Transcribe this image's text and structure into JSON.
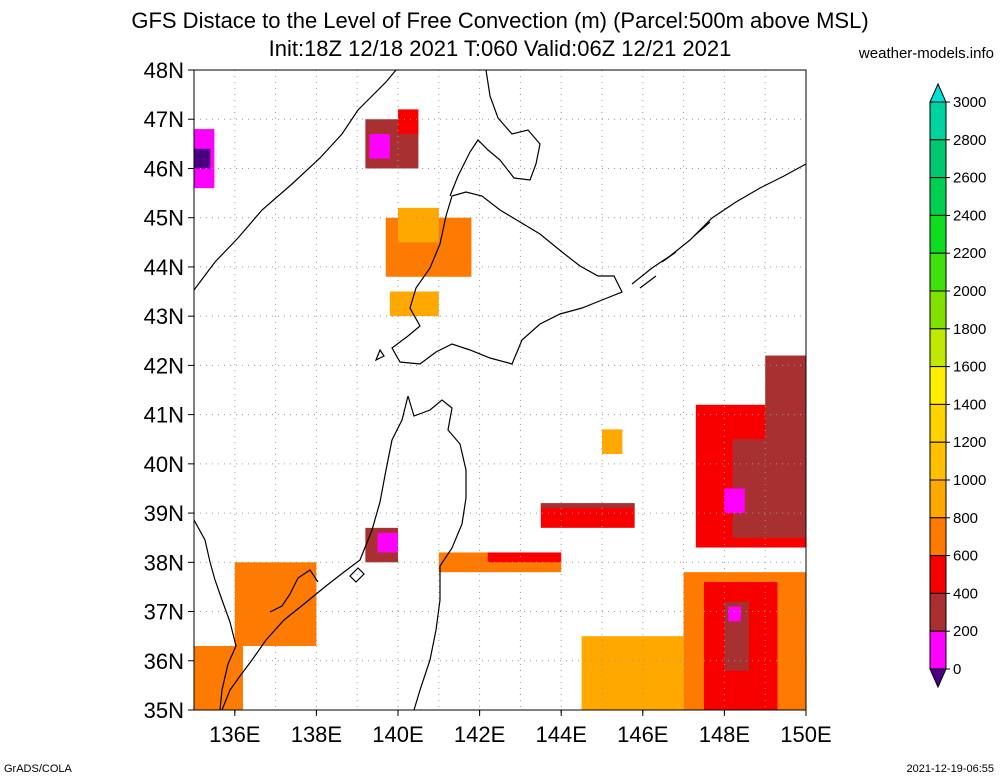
{
  "title": "GFS Distace to the Level of Free Convection (m) (Parcel:500m above MSL)",
  "subtitle": "Init:18Z 12/18 2021 T:060 Valid:06Z 12/21 2021",
  "credit": "weather-models.info",
  "footer_left": "GrADS/COLA",
  "footer_right": "2021-12-19-06:55",
  "lat_labels": [
    "48N",
    "47N",
    "46N",
    "45N",
    "44N",
    "43N",
    "42N",
    "41N",
    "40N",
    "39N",
    "38N",
    "37N",
    "36N",
    "35N"
  ],
  "lon_labels": [
    "136E",
    "138E",
    "140E",
    "142E",
    "144E",
    "146E",
    "148E",
    "150E"
  ],
  "colorbar": {
    "labels": [
      "3000",
      "2800",
      "2600",
      "2400",
      "2200",
      "2000",
      "1800",
      "1600",
      "1400",
      "1200",
      "1000",
      "800",
      "600",
      "400",
      "200",
      "0"
    ],
    "colors": [
      "#00e0d8",
      "#00d2a0",
      "#00c870",
      "#00d050",
      "#10dc20",
      "#40e010",
      "#80e000",
      "#c0e800",
      "#ffee00",
      "#ffd200",
      "#ffc000",
      "#ffa800",
      "#ff7a00",
      "#f80000",
      "#a83030",
      "#ff00ff",
      "#4b0082"
    ]
  },
  "chart_data": {
    "type": "heatmap",
    "lon_range": [
      135,
      150
    ],
    "lat_range": [
      35,
      48
    ],
    "value_range": [
      0,
      3000
    ],
    "regions": [
      {
        "lon": [
          147.0,
          150.0
        ],
        "lat": [
          35.0,
          37.8
        ],
        "level": 800
      },
      {
        "lon": [
          147.5,
          149.3
        ],
        "lat": [
          35.0,
          37.6
        ],
        "level": 600
      },
      {
        "lon": [
          148.0,
          148.6
        ],
        "lat": [
          35.8,
          37.2
        ],
        "level": 400
      },
      {
        "lon": [
          148.1,
          148.4
        ],
        "lat": [
          36.8,
          37.1
        ],
        "level": 200
      },
      {
        "lon": [
          144.5,
          147.0
        ],
        "lat": [
          35.0,
          36.5
        ],
        "level": 1000
      },
      {
        "lon": [
          147.3,
          150.0
        ],
        "lat": [
          38.3,
          41.2
        ],
        "level": 600
      },
      {
        "lon": [
          148.2,
          150.0
        ],
        "lat": [
          38.5,
          40.5
        ],
        "level": 400
      },
      {
        "lon": [
          149.0,
          150.0
        ],
        "lat": [
          40.5,
          42.2
        ],
        "level": 400
      },
      {
        "lon": [
          148.0,
          148.5
        ],
        "lat": [
          39.0,
          39.5
        ],
        "level": 200
      },
      {
        "lon": [
          143.5,
          145.8
        ],
        "lat": [
          38.7,
          39.2
        ],
        "level": 600
      },
      {
        "lon": [
          143.5,
          145.8
        ],
        "lat": [
          39.1,
          39.2
        ],
        "level": 400
      },
      {
        "lon": [
          141.0,
          144.0
        ],
        "lat": [
          37.8,
          38.2
        ],
        "level": 800
      },
      {
        "lon": [
          142.2,
          144.0
        ],
        "lat": [
          38.0,
          38.2
        ],
        "level": 600
      },
      {
        "lon": [
          135.0,
          136.2
        ],
        "lat": [
          35.0,
          36.3
        ],
        "level": 800
      },
      {
        "lon": [
          136.0,
          138.0
        ],
        "lat": [
          36.3,
          38.0
        ],
        "level": 800
      },
      {
        "lon": [
          139.2,
          140.0
        ],
        "lat": [
          38.0,
          38.7
        ],
        "level": 400
      },
      {
        "lon": [
          139.5,
          140.0
        ],
        "lat": [
          38.2,
          38.6
        ],
        "level": 200
      },
      {
        "lon": [
          139.7,
          141.8
        ],
        "lat": [
          43.8,
          45.0
        ],
        "level": 800
      },
      {
        "lon": [
          140.0,
          141.0
        ],
        "lat": [
          44.5,
          45.2
        ],
        "level": 1000
      },
      {
        "lon": [
          139.2,
          140.5
        ],
        "lat": [
          46.0,
          47.0
        ],
        "level": 400
      },
      {
        "lon": [
          139.3,
          139.8
        ],
        "lat": [
          46.2,
          46.7
        ],
        "level": 200
      },
      {
        "lon": [
          140.0,
          140.5
        ],
        "lat": [
          46.7,
          47.2
        ],
        "level": 600
      },
      {
        "lon": [
          135.0,
          135.5
        ],
        "lat": [
          45.6,
          46.8
        ],
        "level": 200
      },
      {
        "lon": [
          135.0,
          135.4
        ],
        "lat": [
          46.0,
          46.4
        ],
        "level": 0
      },
      {
        "lon": [
          139.8,
          141.0
        ],
        "lat": [
          43.0,
          43.5
        ],
        "level": 1000
      },
      {
        "lon": [
          145.0,
          145.5
        ],
        "lat": [
          40.2,
          40.7
        ],
        "level": 1000
      }
    ]
  }
}
